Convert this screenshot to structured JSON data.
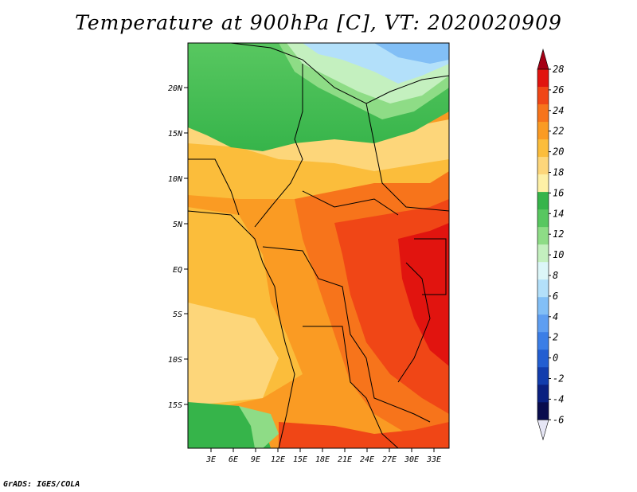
{
  "title": "Temperature at 900hPa [C], VT: 2020020909",
  "footer": "GrADS: IGES/COLA",
  "map": {
    "lat_ticks": [
      "20N",
      "15N",
      "10N",
      "5N",
      "EQ",
      "5S",
      "10S",
      "15S"
    ],
    "lon_ticks": [
      "3E",
      "6E",
      "9E",
      "12E",
      "15E",
      "18E",
      "21E",
      "24E",
      "27E",
      "30E",
      "33E"
    ]
  },
  "colorbar": {
    "labels": [
      "28",
      "26",
      "24",
      "22",
      "20",
      "18",
      "16",
      "14",
      "12",
      "10",
      "8",
      "6",
      "4",
      "2",
      "0",
      "-2",
      "-4",
      "-6"
    ],
    "colors": [
      "#a50015",
      "#e1140f",
      "#f04616",
      "#f7741b",
      "#fa9b23",
      "#fbbd3b",
      "#fdd67a",
      "#fef0a6",
      "#36b44a",
      "#58c760",
      "#8edc86",
      "#c4f0bf",
      "#dcf6f8",
      "#b3e0fa",
      "#82bff6",
      "#5e9ef1",
      "#3b7ee6",
      "#235ed1",
      "#123dad",
      "#0a2080",
      "#090c4d",
      "#e6e6f5"
    ]
  }
}
